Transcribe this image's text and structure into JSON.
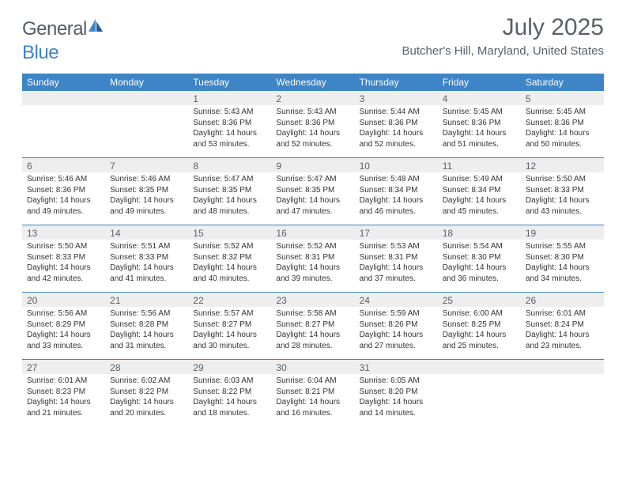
{
  "brand": {
    "word1": "General",
    "word2": "Blue"
  },
  "title": "July 2025",
  "location": "Butcher's Hill, Maryland, United States",
  "colors": {
    "header_bg": "#3d85c6",
    "header_text": "#ffffff",
    "daynum_bg": "#eeeeee",
    "text": "#333333",
    "muted": "#5a6068"
  },
  "day_names": [
    "Sunday",
    "Monday",
    "Tuesday",
    "Wednesday",
    "Thursday",
    "Friday",
    "Saturday"
  ],
  "weeks": [
    [
      {
        "n": "",
        "empty": true
      },
      {
        "n": "",
        "empty": true
      },
      {
        "n": "1",
        "sr": "Sunrise: 5:43 AM",
        "ss": "Sunset: 8:36 PM",
        "dl1": "Daylight: 14 hours",
        "dl2": "and 53 minutes."
      },
      {
        "n": "2",
        "sr": "Sunrise: 5:43 AM",
        "ss": "Sunset: 8:36 PM",
        "dl1": "Daylight: 14 hours",
        "dl2": "and 52 minutes."
      },
      {
        "n": "3",
        "sr": "Sunrise: 5:44 AM",
        "ss": "Sunset: 8:36 PM",
        "dl1": "Daylight: 14 hours",
        "dl2": "and 52 minutes."
      },
      {
        "n": "4",
        "sr": "Sunrise: 5:45 AM",
        "ss": "Sunset: 8:36 PM",
        "dl1": "Daylight: 14 hours",
        "dl2": "and 51 minutes."
      },
      {
        "n": "5",
        "sr": "Sunrise: 5:45 AM",
        "ss": "Sunset: 8:36 PM",
        "dl1": "Daylight: 14 hours",
        "dl2": "and 50 minutes."
      }
    ],
    [
      {
        "n": "6",
        "sr": "Sunrise: 5:46 AM",
        "ss": "Sunset: 8:36 PM",
        "dl1": "Daylight: 14 hours",
        "dl2": "and 49 minutes."
      },
      {
        "n": "7",
        "sr": "Sunrise: 5:46 AM",
        "ss": "Sunset: 8:35 PM",
        "dl1": "Daylight: 14 hours",
        "dl2": "and 49 minutes."
      },
      {
        "n": "8",
        "sr": "Sunrise: 5:47 AM",
        "ss": "Sunset: 8:35 PM",
        "dl1": "Daylight: 14 hours",
        "dl2": "and 48 minutes."
      },
      {
        "n": "9",
        "sr": "Sunrise: 5:47 AM",
        "ss": "Sunset: 8:35 PM",
        "dl1": "Daylight: 14 hours",
        "dl2": "and 47 minutes."
      },
      {
        "n": "10",
        "sr": "Sunrise: 5:48 AM",
        "ss": "Sunset: 8:34 PM",
        "dl1": "Daylight: 14 hours",
        "dl2": "and 46 minutes."
      },
      {
        "n": "11",
        "sr": "Sunrise: 5:49 AM",
        "ss": "Sunset: 8:34 PM",
        "dl1": "Daylight: 14 hours",
        "dl2": "and 45 minutes."
      },
      {
        "n": "12",
        "sr": "Sunrise: 5:50 AM",
        "ss": "Sunset: 8:33 PM",
        "dl1": "Daylight: 14 hours",
        "dl2": "and 43 minutes."
      }
    ],
    [
      {
        "n": "13",
        "sr": "Sunrise: 5:50 AM",
        "ss": "Sunset: 8:33 PM",
        "dl1": "Daylight: 14 hours",
        "dl2": "and 42 minutes."
      },
      {
        "n": "14",
        "sr": "Sunrise: 5:51 AM",
        "ss": "Sunset: 8:33 PM",
        "dl1": "Daylight: 14 hours",
        "dl2": "and 41 minutes."
      },
      {
        "n": "15",
        "sr": "Sunrise: 5:52 AM",
        "ss": "Sunset: 8:32 PM",
        "dl1": "Daylight: 14 hours",
        "dl2": "and 40 minutes."
      },
      {
        "n": "16",
        "sr": "Sunrise: 5:52 AM",
        "ss": "Sunset: 8:31 PM",
        "dl1": "Daylight: 14 hours",
        "dl2": "and 39 minutes."
      },
      {
        "n": "17",
        "sr": "Sunrise: 5:53 AM",
        "ss": "Sunset: 8:31 PM",
        "dl1": "Daylight: 14 hours",
        "dl2": "and 37 minutes."
      },
      {
        "n": "18",
        "sr": "Sunrise: 5:54 AM",
        "ss": "Sunset: 8:30 PM",
        "dl1": "Daylight: 14 hours",
        "dl2": "and 36 minutes."
      },
      {
        "n": "19",
        "sr": "Sunrise: 5:55 AM",
        "ss": "Sunset: 8:30 PM",
        "dl1": "Daylight: 14 hours",
        "dl2": "and 34 minutes."
      }
    ],
    [
      {
        "n": "20",
        "sr": "Sunrise: 5:56 AM",
        "ss": "Sunset: 8:29 PM",
        "dl1": "Daylight: 14 hours",
        "dl2": "and 33 minutes."
      },
      {
        "n": "21",
        "sr": "Sunrise: 5:56 AM",
        "ss": "Sunset: 8:28 PM",
        "dl1": "Daylight: 14 hours",
        "dl2": "and 31 minutes."
      },
      {
        "n": "22",
        "sr": "Sunrise: 5:57 AM",
        "ss": "Sunset: 8:27 PM",
        "dl1": "Daylight: 14 hours",
        "dl2": "and 30 minutes."
      },
      {
        "n": "23",
        "sr": "Sunrise: 5:58 AM",
        "ss": "Sunset: 8:27 PM",
        "dl1": "Daylight: 14 hours",
        "dl2": "and 28 minutes."
      },
      {
        "n": "24",
        "sr": "Sunrise: 5:59 AM",
        "ss": "Sunset: 8:26 PM",
        "dl1": "Daylight: 14 hours",
        "dl2": "and 27 minutes."
      },
      {
        "n": "25",
        "sr": "Sunrise: 6:00 AM",
        "ss": "Sunset: 8:25 PM",
        "dl1": "Daylight: 14 hours",
        "dl2": "and 25 minutes."
      },
      {
        "n": "26",
        "sr": "Sunrise: 6:01 AM",
        "ss": "Sunset: 8:24 PM",
        "dl1": "Daylight: 14 hours",
        "dl2": "and 23 minutes."
      }
    ],
    [
      {
        "n": "27",
        "sr": "Sunrise: 6:01 AM",
        "ss": "Sunset: 8:23 PM",
        "dl1": "Daylight: 14 hours",
        "dl2": "and 21 minutes."
      },
      {
        "n": "28",
        "sr": "Sunrise: 6:02 AM",
        "ss": "Sunset: 8:22 PM",
        "dl1": "Daylight: 14 hours",
        "dl2": "and 20 minutes."
      },
      {
        "n": "29",
        "sr": "Sunrise: 6:03 AM",
        "ss": "Sunset: 8:22 PM",
        "dl1": "Daylight: 14 hours",
        "dl2": "and 18 minutes."
      },
      {
        "n": "30",
        "sr": "Sunrise: 6:04 AM",
        "ss": "Sunset: 8:21 PM",
        "dl1": "Daylight: 14 hours",
        "dl2": "and 16 minutes."
      },
      {
        "n": "31",
        "sr": "Sunrise: 6:05 AM",
        "ss": "Sunset: 8:20 PM",
        "dl1": "Daylight: 14 hours",
        "dl2": "and 14 minutes."
      },
      {
        "n": "",
        "empty": true
      },
      {
        "n": "",
        "empty": true
      }
    ]
  ]
}
